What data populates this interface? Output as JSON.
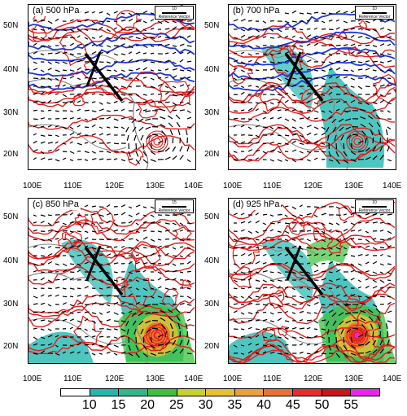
{
  "panels": [
    {
      "title": "(a) 500 hPa",
      "ref_len": "10",
      "ref_text": "Reference Vector"
    },
    {
      "title": "(b) 700 hPa",
      "ref_len": "10",
      "ref_text": "Reference Vector"
    },
    {
      "title": "(c) 850 hPa",
      "ref_len": "15",
      "ref_text": "Reference Vector"
    },
    {
      "title": "(d) 925 hPa",
      "ref_len": "10",
      "ref_text": "Reference Vector"
    }
  ],
  "lat_labels": [
    "50N",
    "40N",
    "30N",
    "20N"
  ],
  "lon_labels": [
    "100E",
    "110E",
    "120E",
    "130E",
    "140E"
  ],
  "lon_labels_right": [
    "100E",
    "110E",
    "120E",
    "130E",
    "140E"
  ],
  "colorbar": {
    "labels": [
      "10",
      "15",
      "20",
      "25",
      "30",
      "35",
      "40",
      "45",
      "50",
      "55"
    ],
    "colors": [
      "#ffffff",
      "#22b8b0",
      "#2fb888",
      "#3cc23c",
      "#c8d22c",
      "#e8c030",
      "#eea038",
      "#ee7030",
      "#e82c2c",
      "#c81818",
      "#ee22ee"
    ]
  },
  "map_style": {
    "coast": "#888888",
    "contour_red": "#e21b1b",
    "contour_blue": "#1f37d6",
    "vector": "#000000",
    "cross_section": "#000000"
  }
}
